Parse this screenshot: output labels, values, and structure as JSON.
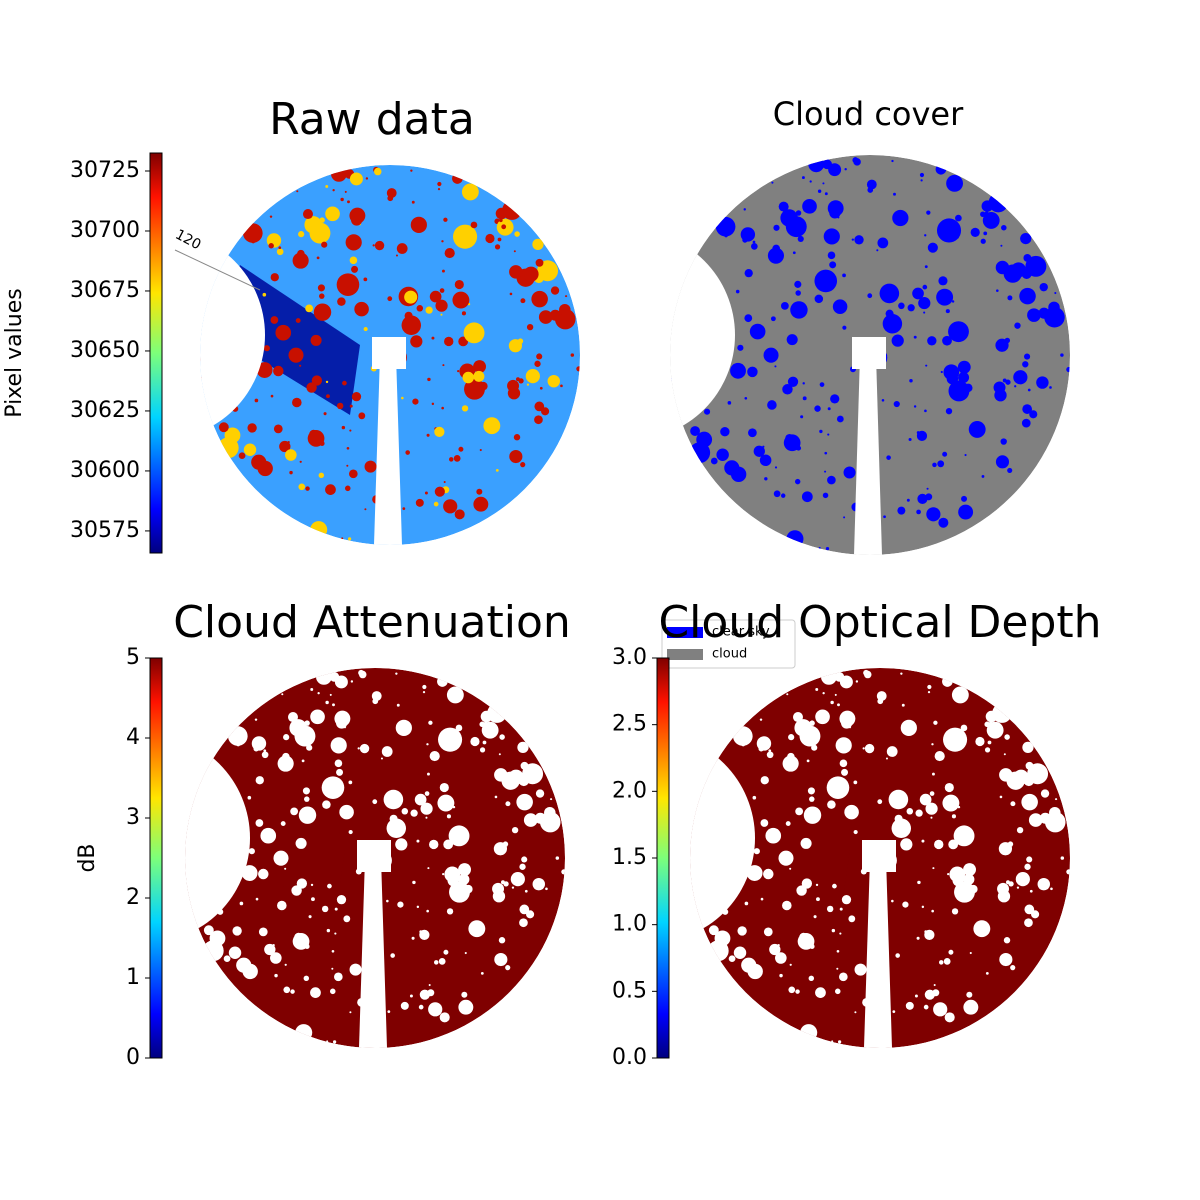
{
  "chart_data": [
    {
      "type": "image",
      "title": "Raw data",
      "colorbar_label": "Pixel values",
      "colormap": "jet",
      "clim": [
        30565.8,
        30732.5
      ],
      "cticks": [
        30575,
        30600,
        30625,
        30650,
        30675,
        30700,
        30725
      ],
      "annotations": [
        "120"
      ]
    },
    {
      "type": "image",
      "title": "Cloud cover",
      "legend": [
        {
          "name": "clear sky",
          "color": "#0000ff"
        },
        {
          "name": "cloud",
          "color": "#808080"
        }
      ]
    },
    {
      "type": "image",
      "title": "Cloud Attenuation",
      "colorbar_label": "dB",
      "colormap": "jet",
      "clim": [
        0,
        5
      ],
      "cticks": [
        0,
        1,
        2,
        3,
        4,
        5
      ]
    },
    {
      "type": "image",
      "title": "Cloud Optical Depth",
      "colormap": "jet",
      "clim": [
        0,
        3.0
      ],
      "cticks": [
        {
          "value": 0,
          "label": "0.0"
        },
        0.5,
        {
          "value": 1,
          "label": "1.0"
        },
        1.5,
        {
          "value": 2,
          "label": "2.0"
        },
        2.5,
        {
          "value": 3,
          "label": "3.0"
        }
      ]
    }
  ]
}
